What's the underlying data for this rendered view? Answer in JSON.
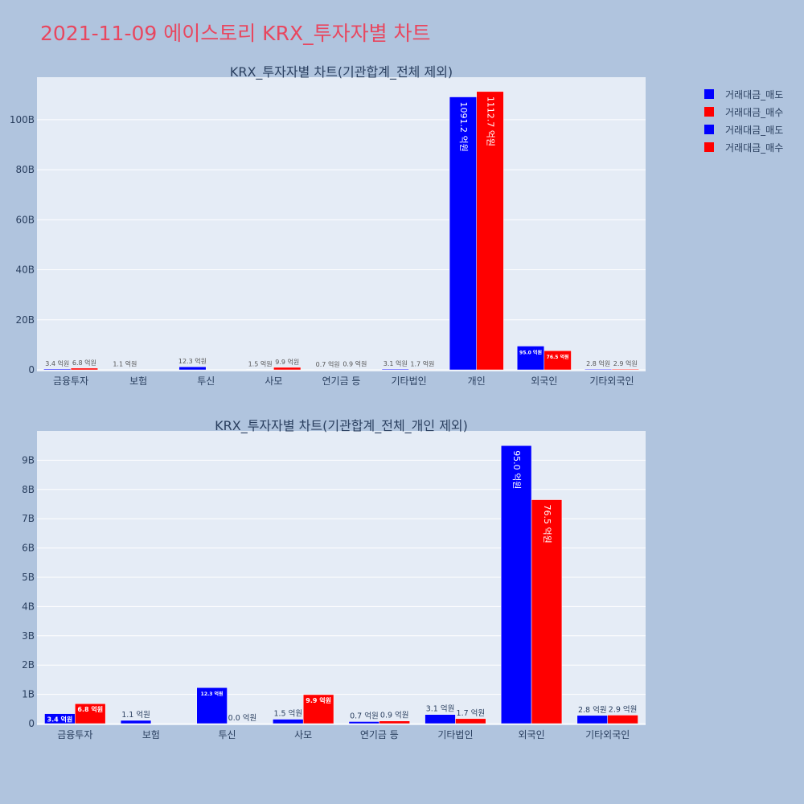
{
  "page": {
    "title": "2021-11-09 에이스토리 KRX_투자자별 차트"
  },
  "colors": {
    "sell": "#0000ff",
    "buy": "#ff0000",
    "plot_bg": "#e5ecf6",
    "page_bg": "#b0c4de",
    "title": "#e8475f"
  },
  "legend": {
    "items": [
      {
        "label": "거래대금_매도",
        "color": "#0000ff"
      },
      {
        "label": "거래대금_매수",
        "color": "#ff0000"
      },
      {
        "label": "거래대금_매도",
        "color": "#0000ff"
      },
      {
        "label": "거래대금_매수",
        "color": "#ff0000"
      }
    ]
  },
  "chart_data": [
    {
      "type": "bar",
      "title": "KRX_투자자별 차트(기관합계_전체 제외)",
      "categories": [
        "금융투자",
        "보험",
        "투신",
        "사모",
        "연기금 등",
        "기타법인",
        "개인",
        "외국인",
        "기타외국인"
      ],
      "series": [
        {
          "name": "거래대금_매도",
          "values": [
            3.4,
            1.1,
            12.3,
            1.5,
            0.7,
            3.1,
            1091.2,
            95.0,
            2.8
          ],
          "labels": [
            "3.4 억원",
            "1.1 억원",
            "12.3 억원",
            "1.5 억원",
            "0.7 억원",
            "3.1 억원",
            "1091.2 억원",
            "95.0 억원",
            "2.8 억원"
          ]
        },
        {
          "name": "거래대금_매수",
          "values": [
            6.8,
            0,
            0,
            9.9,
            0.9,
            1.7,
            1112.7,
            76.5,
            2.9
          ],
          "labels": [
            "6.8 억원",
            "",
            "",
            "9.9 억원",
            "0.9 억원",
            "1.7 억원",
            "1112.7 억원",
            "76.5 억원",
            "2.9 억원"
          ]
        }
      ],
      "unit": "억원",
      "yticks": [
        "0",
        "20B",
        "40B",
        "60B",
        "80B",
        "100B"
      ],
      "ytick_values": [
        0,
        200,
        400,
        600,
        800,
        1000
      ],
      "ylim": [
        0,
        1170
      ],
      "grid": true
    },
    {
      "type": "bar",
      "title": "KRX_투자자별 차트(기관합계_전체_개인 제외)",
      "categories": [
        "금융투자",
        "보험",
        "투신",
        "사모",
        "연기금 등",
        "기타법인",
        "외국인",
        "기타외국인"
      ],
      "series": [
        {
          "name": "거래대금_매도",
          "values": [
            3.4,
            1.1,
            12.3,
            1.5,
            0.7,
            3.1,
            95.0,
            2.8
          ],
          "labels": [
            "3.4 억원",
            "1.1 억원",
            "12.3 억원",
            "1.5 억원",
            "0.7 억원",
            "3.1 억원",
            "95.0 억원",
            "2.8 억원"
          ]
        },
        {
          "name": "거래대금_매수",
          "values": [
            6.8,
            0,
            0.0,
            9.9,
            0.9,
            1.7,
            76.5,
            2.9
          ],
          "labels": [
            "6.8 억원",
            "",
            "0.0 억원",
            "9.9 억원",
            "0.9 억원",
            "1.7 억원",
            "76.5 억원",
            "2.9 억원"
          ]
        }
      ],
      "unit": "억원",
      "yticks": [
        "0",
        "1B",
        "2B",
        "3B",
        "4B",
        "5B",
        "6B",
        "7B",
        "8B",
        "9B"
      ],
      "ytick_values": [
        0,
        10,
        20,
        30,
        40,
        50,
        60,
        70,
        80,
        90
      ],
      "ylim": [
        0,
        100
      ],
      "grid": true
    }
  ]
}
